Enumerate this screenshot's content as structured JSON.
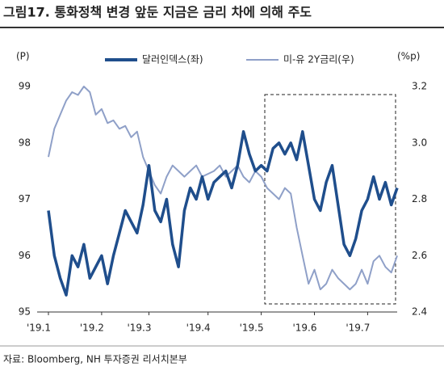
{
  "chart_data": {
    "type": "line",
    "title": "그림17. 통화정책 변경 앞둔 지금은 금리 차에 의해 주도",
    "y_label": "(P)",
    "y2_label": "(%p)",
    "source": "자료: Bloomberg, NH 투자증권 리서치본부",
    "categories": [
      "'19.1",
      null,
      null,
      null,
      null,
      null,
      null,
      null,
      null,
      "'19.2",
      null,
      null,
      null,
      null,
      null,
      null,
      null,
      "'19.3",
      null,
      null,
      null,
      null,
      null,
      null,
      null,
      null,
      null,
      "'19.4",
      null,
      null,
      null,
      null,
      null,
      null,
      null,
      null,
      "'19.5",
      null,
      null,
      null,
      null,
      null,
      null,
      null,
      null,
      "'19.6",
      null,
      null,
      null,
      null,
      null,
      null,
      null,
      null,
      "'19.7",
      null,
      null,
      null,
      null,
      null
    ],
    "series": [
      {
        "name": "달러인덱스(좌)",
        "color": "#1f4e8c",
        "axis": "y",
        "values": [
          96.8,
          96.0,
          95.6,
          95.3,
          96.0,
          95.8,
          96.2,
          95.6,
          95.8,
          96.0,
          95.5,
          96.0,
          96.4,
          96.8,
          96.6,
          96.4,
          96.9,
          97.6,
          96.8,
          96.6,
          97.0,
          96.2,
          95.8,
          96.8,
          97.2,
          97.0,
          97.4,
          97.0,
          97.3,
          97.4,
          97.5,
          97.2,
          97.6,
          98.2,
          97.8,
          97.5,
          97.6,
          97.5,
          97.9,
          98.0,
          97.8,
          98.0,
          97.7,
          98.2,
          97.6,
          97.0,
          96.8,
          97.3,
          97.6,
          96.9,
          96.2,
          96.0,
          96.3,
          96.8,
          97.0,
          97.4,
          97.0,
          97.3,
          96.9,
          97.2
        ]
      },
      {
        "name": "미-유 2Y금리(우)",
        "color": "#8fa0c8",
        "axis": "y2",
        "values": [
          2.95,
          3.05,
          3.1,
          3.15,
          3.18,
          3.17,
          3.2,
          3.18,
          3.1,
          3.12,
          3.07,
          3.08,
          3.05,
          3.06,
          3.02,
          3.04,
          2.95,
          2.9,
          2.85,
          2.82,
          2.88,
          2.92,
          2.9,
          2.88,
          2.9,
          2.92,
          2.88,
          2.89,
          2.9,
          2.92,
          2.88,
          2.9,
          2.92,
          2.88,
          2.86,
          2.9,
          2.88,
          2.84,
          2.82,
          2.8,
          2.84,
          2.82,
          2.7,
          2.6,
          2.5,
          2.55,
          2.48,
          2.5,
          2.55,
          2.52,
          2.5,
          2.48,
          2.5,
          2.55,
          2.5,
          2.58,
          2.6,
          2.56,
          2.54,
          2.6
        ]
      }
    ],
    "ylim": [
      95,
      99
    ],
    "yticks": [
      95,
      96,
      97,
      98,
      99
    ],
    "y2lim": [
      2.4,
      3.2
    ],
    "y2ticks": [
      2.4,
      2.6,
      2.8,
      {
        "value": 3,
        "label": "3.0"
      },
      3.2
    ],
    "legend": "top"
  }
}
